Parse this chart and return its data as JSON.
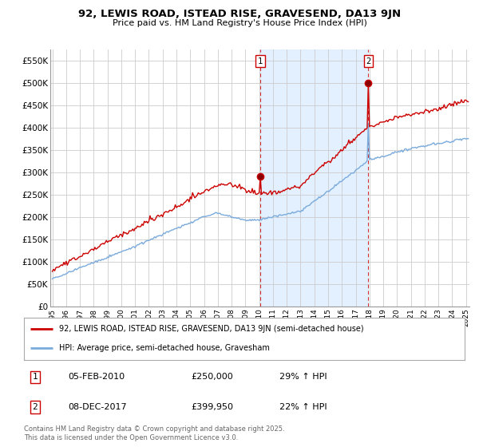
{
  "title": "92, LEWIS ROAD, ISTEAD RISE, GRAVESEND, DA13 9JN",
  "subtitle": "Price paid vs. HM Land Registry's House Price Index (HPI)",
  "ylabel_ticks": [
    "£0",
    "£50K",
    "£100K",
    "£150K",
    "£200K",
    "£250K",
    "£300K",
    "£350K",
    "£400K",
    "£450K",
    "£500K",
    "£550K"
  ],
  "ytick_vals": [
    0,
    50000,
    100000,
    150000,
    200000,
    250000,
    300000,
    350000,
    400000,
    450000,
    500000,
    550000
  ],
  "ylim": [
    0,
    575000
  ],
  "sale1_year": 2010,
  "sale1_month": 2,
  "sale1_price": 250000,
  "sale2_year": 2017,
  "sale2_month": 12,
  "sale2_price": 399950,
  "legend_line1": "92, LEWIS ROAD, ISTEAD RISE, GRAVESEND, DA13 9JN (semi-detached house)",
  "legend_line2": "HPI: Average price, semi-detached house, Gravesham",
  "note1_label": "1",
  "note1_date": "05-FEB-2010",
  "note1_price": "£250,000",
  "note1_hpi": "29% ↑ HPI",
  "note2_label": "2",
  "note2_date": "08-DEC-2017",
  "note2_price": "£399,950",
  "note2_hpi": "22% ↑ HPI",
  "footer": "Contains HM Land Registry data © Crown copyright and database right 2025.\nThis data is licensed under the Open Government Licence v3.0.",
  "line_color_price": "#cc0000",
  "line_color_hpi": "#7aabdc",
  "shaded_color": "#ddeeff",
  "background_color": "#ffffff"
}
